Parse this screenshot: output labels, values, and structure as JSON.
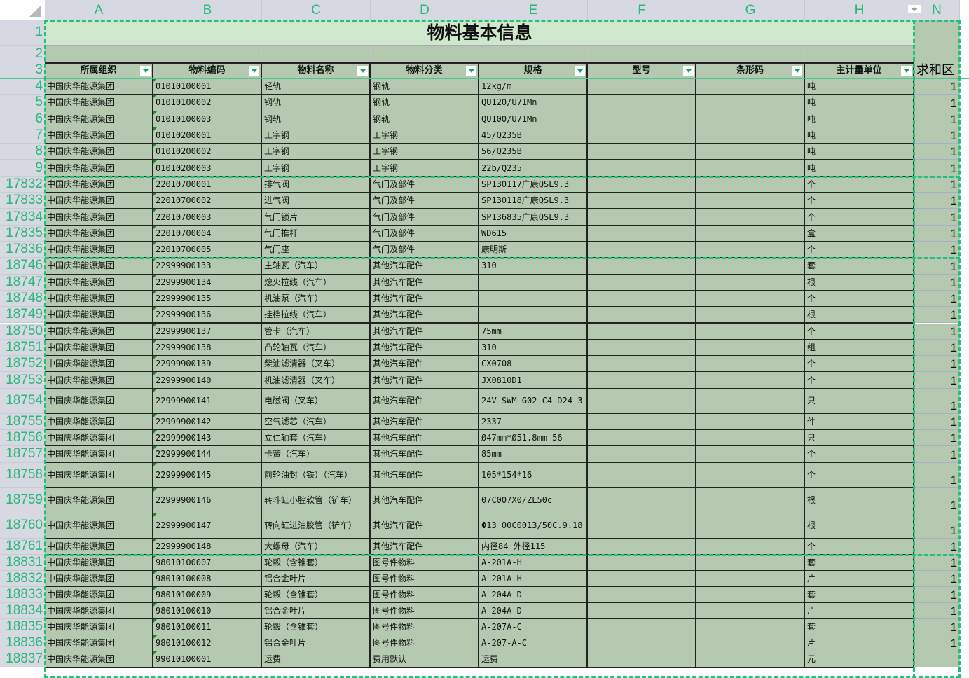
{
  "columns": [
    "A",
    "B",
    "C",
    "D",
    "E",
    "F",
    "G",
    "H",
    "N"
  ],
  "title": "物料基本信息",
  "headers": [
    "所属组织",
    "物料编码",
    "物料名称",
    "物料分类",
    "规格",
    "型号",
    "条形码",
    "主计量单位"
  ],
  "n_header": "求和区",
  "colors": {
    "accent": "#22c07a",
    "cell_bg": "#b4c9b0",
    "title_bg": "#cfe7cd",
    "header_bg": "#d6d9e2"
  },
  "rows": [
    {
      "num": "4",
      "org": "中国庆华能源集团",
      "code": "01010100001",
      "name": "轻轨",
      "cat": "钢轨",
      "spec": "12kg/m",
      "unit": "吨",
      "sum": "1"
    },
    {
      "num": "5",
      "org": "中国庆华能源集团",
      "code": "01010100002",
      "name": "钢轨",
      "cat": "钢轨",
      "spec": "QU120/U71Mn",
      "unit": "吨",
      "sum": "1"
    },
    {
      "num": "6",
      "org": "中国庆华能源集团",
      "code": "01010100003",
      "name": "钢轨",
      "cat": "钢轨",
      "spec": "QU100/U71Mn",
      "unit": "吨",
      "sum": "1"
    },
    {
      "num": "7",
      "org": "中国庆华能源集团",
      "code": "01010200001",
      "name": "工字钢",
      "cat": "工字钢",
      "spec": "45/Q235B",
      "unit": "吨",
      "sum": "1"
    },
    {
      "num": "8",
      "org": "中国庆华能源集团",
      "code": "01010200002",
      "name": "工字钢",
      "cat": "工字钢",
      "spec": "56/Q235B",
      "unit": "吨",
      "sum": "1"
    },
    {
      "num": "9",
      "org": "中国庆华能源集团",
      "code": "01010200003",
      "name": "工字钢",
      "cat": "工字钢",
      "spec": "22b/Q235",
      "unit": "吨",
      "sum": "1"
    },
    {
      "num": "17832",
      "org": "中国庆华能源集团",
      "code": "22010700001",
      "name": "排气阀",
      "cat": "气门及部件",
      "spec": "SP130117广康QSL9.3",
      "unit": "个",
      "sum": "1"
    },
    {
      "num": "17833",
      "org": "中国庆华能源集团",
      "code": "22010700002",
      "name": "进气阀",
      "cat": "气门及部件",
      "spec": "SP130118广康QSL9.3",
      "unit": "个",
      "sum": "1"
    },
    {
      "num": "17834",
      "org": "中国庆华能源集团",
      "code": "22010700003",
      "name": "气门锁片",
      "cat": "气门及部件",
      "spec": "SP136835广康QSL9.3",
      "unit": "个",
      "sum": "1"
    },
    {
      "num": "17835",
      "org": "中国庆华能源集团",
      "code": "22010700004",
      "name": "气门推杆",
      "cat": "气门及部件",
      "spec": "WD615",
      "unit": "盒",
      "sum": "1"
    },
    {
      "num": "17836",
      "org": "中国庆华能源集团",
      "code": "22010700005",
      "name": "气门座",
      "cat": "气门及部件",
      "spec": "康明斯",
      "unit": "个",
      "sum": "1"
    },
    {
      "num": "18746",
      "org": "中国庆华能源集团",
      "code": "22999900133",
      "name": "主轴瓦（汽车）",
      "cat": "其他汽车配件",
      "spec": "310",
      "unit": "套",
      "sum": "1"
    },
    {
      "num": "18747",
      "org": "中国庆华能源集团",
      "code": "22999900134",
      "name": "熄火拉线（汽车）",
      "cat": "其他汽车配件",
      "spec": "",
      "unit": "根",
      "sum": "1"
    },
    {
      "num": "18748",
      "org": "中国庆华能源集团",
      "code": "22999900135",
      "name": "机油泵（汽车）",
      "cat": "其他汽车配件",
      "spec": "",
      "unit": "个",
      "sum": "1"
    },
    {
      "num": "18749",
      "org": "中国庆华能源集团",
      "code": "22999900136",
      "name": "挂档拉线（汽车）",
      "cat": "其他汽车配件",
      "spec": "",
      "unit": "根",
      "sum": "1"
    },
    {
      "num": "18750",
      "org": "中国庆华能源集团",
      "code": "22999900137",
      "name": "管卡（汽车）",
      "cat": "其他汽车配件",
      "spec": "75mm",
      "unit": "个",
      "sum": "1"
    },
    {
      "num": "18751",
      "org": "中国庆华能源集团",
      "code": "22999900138",
      "name": "凸轮轴瓦（汽车）",
      "cat": "其他汽车配件",
      "spec": "310",
      "unit": "组",
      "sum": "1"
    },
    {
      "num": "18752",
      "org": "中国庆华能源集团",
      "code": "22999900139",
      "name": "柴油滤清器（叉车）",
      "cat": "其他汽车配件",
      "spec": "CX0708",
      "unit": "个",
      "sum": "1"
    },
    {
      "num": "18753",
      "org": "中国庆华能源集团",
      "code": "22999900140",
      "name": "机油滤清器（叉车）",
      "cat": "其他汽车配件",
      "spec": "JX0810D1",
      "unit": "个",
      "sum": "1"
    },
    {
      "num": "18754",
      "org": "中国庆华能源集团",
      "code": "22999900141",
      "name": "电磁阀（叉车）",
      "cat": "其他汽车配件",
      "spec": "24V SWM-G02-C4-D24-3",
      "unit": "只",
      "sum": "1",
      "tall": true
    },
    {
      "num": "18755",
      "org": "中国庆华能源集团",
      "code": "22999900142",
      "name": "空气滤芯（汽车）",
      "cat": "其他汽车配件",
      "spec": "2337",
      "unit": "件",
      "sum": "1"
    },
    {
      "num": "18756",
      "org": "中国庆华能源集团",
      "code": "22999900143",
      "name": "立仁轴套（汽车）",
      "cat": "其他汽车配件",
      "spec": "Ø47mm*Ø51.8mm 56",
      "unit": "只",
      "sum": "1"
    },
    {
      "num": "18757",
      "org": "中国庆华能源集团",
      "code": "22999900144",
      "name": "卡簧（汽车）",
      "cat": "其他汽车配件",
      "spec": "85mm",
      "unit": "个",
      "sum": "1"
    },
    {
      "num": "18758",
      "org": "中国庆华能源集团",
      "code": "22999900145",
      "name": "前轮油封（铁）（汽车）",
      "cat": "其他汽车配件",
      "spec": "105*154*16",
      "unit": "个",
      "sum": "1",
      "tall": true
    },
    {
      "num": "18759",
      "org": "中国庆华能源集团",
      "code": "22999900146",
      "name": "转斗缸小腔软管（铲车）",
      "cat": "其他汽车配件",
      "spec": "07C007X0/ZL50c",
      "unit": "根",
      "sum": "1",
      "tall": true
    },
    {
      "num": "18760",
      "org": "中国庆华能源集团",
      "code": "22999900147",
      "name": "转向缸进油胶管（铲车）",
      "cat": "其他汽车配件",
      "spec": "Φ13 00C0013/50C.9.18",
      "unit": "根",
      "sum": "1",
      "tall": true
    },
    {
      "num": "18761",
      "org": "中国庆华能源集团",
      "code": "22999900148",
      "name": "大螺母（汽车）",
      "cat": "其他汽车配件",
      "spec": "内径84 外径115",
      "unit": "个",
      "sum": "1"
    },
    {
      "num": "18831",
      "org": "中国庆华能源集团",
      "code": "98010100007",
      "name": "轮毂（含锥套）",
      "cat": "图号件物料",
      "spec": "A-201A-H",
      "unit": "套",
      "sum": "1"
    },
    {
      "num": "18832",
      "org": "中国庆华能源集团",
      "code": "98010100008",
      "name": "铝合金叶片",
      "cat": "图号件物料",
      "spec": "A-201A-H",
      "unit": "片",
      "sum": "1"
    },
    {
      "num": "18833",
      "org": "中国庆华能源集团",
      "code": "98010100009",
      "name": "轮毂（含锥套）",
      "cat": "图号件物料",
      "spec": "A-204A-D",
      "unit": "套",
      "sum": "1"
    },
    {
      "num": "18834",
      "org": "中国庆华能源集团",
      "code": "98010100010",
      "name": "铝合金叶片",
      "cat": "图号件物料",
      "spec": "A-204A-D",
      "unit": "片",
      "sum": "1"
    },
    {
      "num": "18835",
      "org": "中国庆华能源集团",
      "code": "98010100011",
      "name": "轮毂（含锥套）",
      "cat": "图号件物料",
      "spec": "A-207A-C",
      "unit": "套",
      "sum": "1"
    },
    {
      "num": "18836",
      "org": "中国庆华能源集团",
      "code": "98010100012",
      "name": "铝合金叶片",
      "cat": "图号件物料",
      "spec": "A-207-A-C",
      "unit": "片",
      "sum": "1"
    },
    {
      "num": "18837",
      "org": "中国庆华能源集团",
      "code": "99010100001",
      "name": "运费",
      "cat": "费用默认",
      "spec": "运费",
      "unit": "元",
      "sum": ""
    }
  ]
}
